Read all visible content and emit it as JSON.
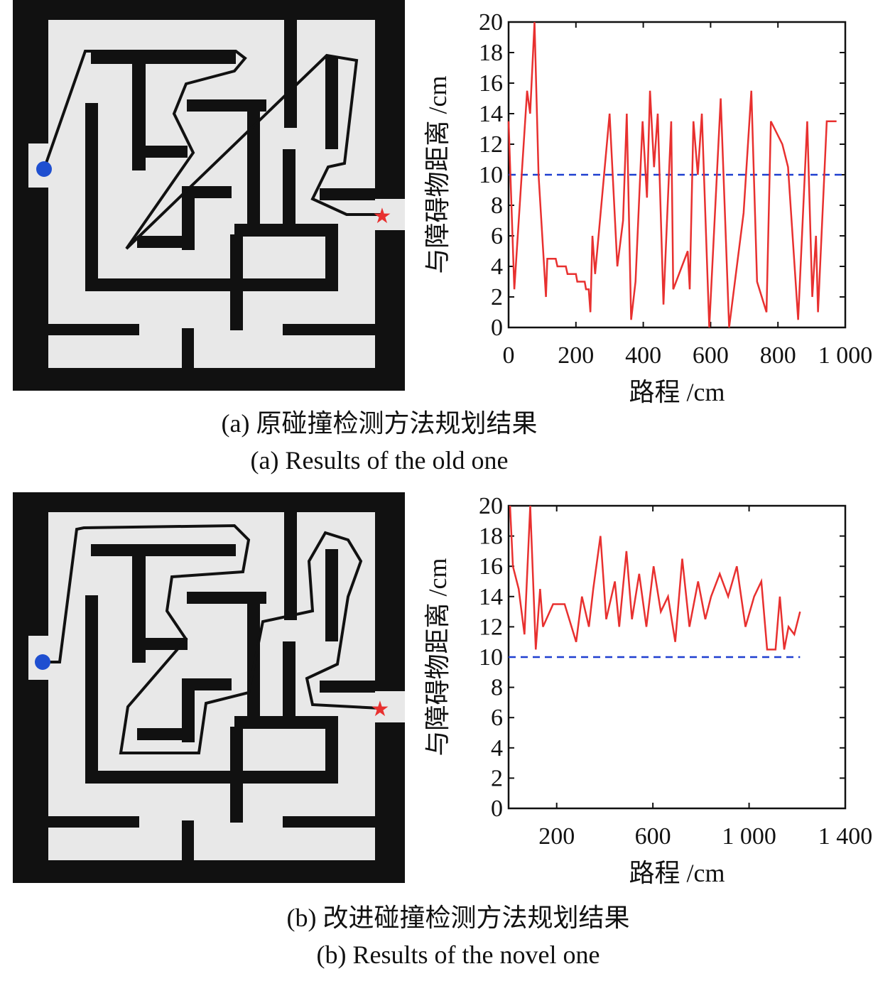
{
  "chart_data": [
    {
      "type": "line",
      "xlabel": "路程 /cm",
      "ylabel": "与障碍物距离 /cm",
      "color": "#e8302f",
      "x": [
        0,
        17,
        55,
        64,
        77,
        89,
        111,
        115,
        140,
        145,
        170,
        175,
        200,
        204,
        226,
        230,
        238,
        243,
        249,
        257,
        300,
        323,
        340,
        351,
        364,
        377,
        398,
        411,
        420,
        432,
        443,
        460,
        483,
        489,
        532,
        538,
        549,
        562,
        574,
        596,
        630,
        655,
        698,
        721,
        738,
        766,
        779,
        813,
        830,
        860,
        887,
        902,
        913,
        919,
        945,
        974
      ],
      "values": [
        13.5,
        2.5,
        15.5,
        14,
        20,
        10,
        2,
        4.5,
        4.5,
        4,
        4,
        3.5,
        3.5,
        3,
        3,
        2.5,
        2.5,
        1,
        6,
        3.5,
        14,
        4,
        7,
        14,
        0.5,
        3,
        13.5,
        8.5,
        15.5,
        10.5,
        14,
        1.5,
        13.5,
        2.5,
        5,
        2.5,
        13.5,
        10,
        14,
        0,
        15,
        0,
        7.5,
        15.5,
        3,
        1,
        13.5,
        12,
        10.5,
        0.5,
        13.5,
        2,
        6,
        1,
        13.5,
        13.5
      ],
      "xlim": [
        0,
        1000
      ],
      "xticks": [
        0,
        200,
        400,
        600,
        800,
        {
          "value": 1000,
          "label": "1 000"
        }
      ],
      "ylim": [
        0,
        20
      ],
      "yticks": [
        0,
        2,
        4,
        6,
        8,
        10,
        12,
        14,
        16,
        18,
        20
      ],
      "hline": {
        "value": 10,
        "color": "#1f3fd0"
      }
    },
    {
      "type": "line",
      "xlabel": "路程 /cm",
      "ylabel": "与障碍物距离 /cm",
      "color": "#e8302f",
      "x": [
        6,
        18,
        42,
        66,
        90,
        113,
        131,
        143,
        185,
        233,
        281,
        305,
        334,
        352,
        382,
        406,
        442,
        460,
        490,
        513,
        543,
        573,
        603,
        633,
        663,
        693,
        722,
        752,
        788,
        818,
        842,
        878,
        913,
        949,
        985,
        1021,
        1051,
        1075,
        1110,
        1128,
        1146,
        1164,
        1188,
        1212
      ],
      "values": [
        20,
        16,
        14.5,
        11.5,
        20,
        10.5,
        14.5,
        12,
        13.5,
        13.5,
        11,
        14,
        12,
        14.5,
        18,
        12.5,
        15,
        12,
        17,
        12.5,
        15.5,
        12,
        16,
        13,
        14,
        11,
        16.5,
        12,
        15,
        12.5,
        14,
        15.5,
        14,
        16,
        12,
        14,
        15,
        10.5,
        10.5,
        14,
        10.5,
        12,
        11.5,
        13
      ],
      "xlim": [
        0,
        1400
      ],
      "xticks": [
        200,
        600,
        {
          "value": 1000,
          "label": "1 000"
        },
        {
          "value": 1400,
          "label": "1 400"
        }
      ],
      "ylim": [
        0,
        20
      ],
      "yticks": [
        0,
        2,
        4,
        6,
        8,
        10,
        12,
        14,
        16,
        18,
        20
      ],
      "hline": {
        "value": 10,
        "color": "#1f3fd0"
      }
    }
  ],
  "captions": [
    "(a) 原碰撞检测方法规划结果",
    "(a) Results of the old one",
    "(b) 改进碰撞检测方法规划结果",
    "(b) Results of the novel one"
  ]
}
